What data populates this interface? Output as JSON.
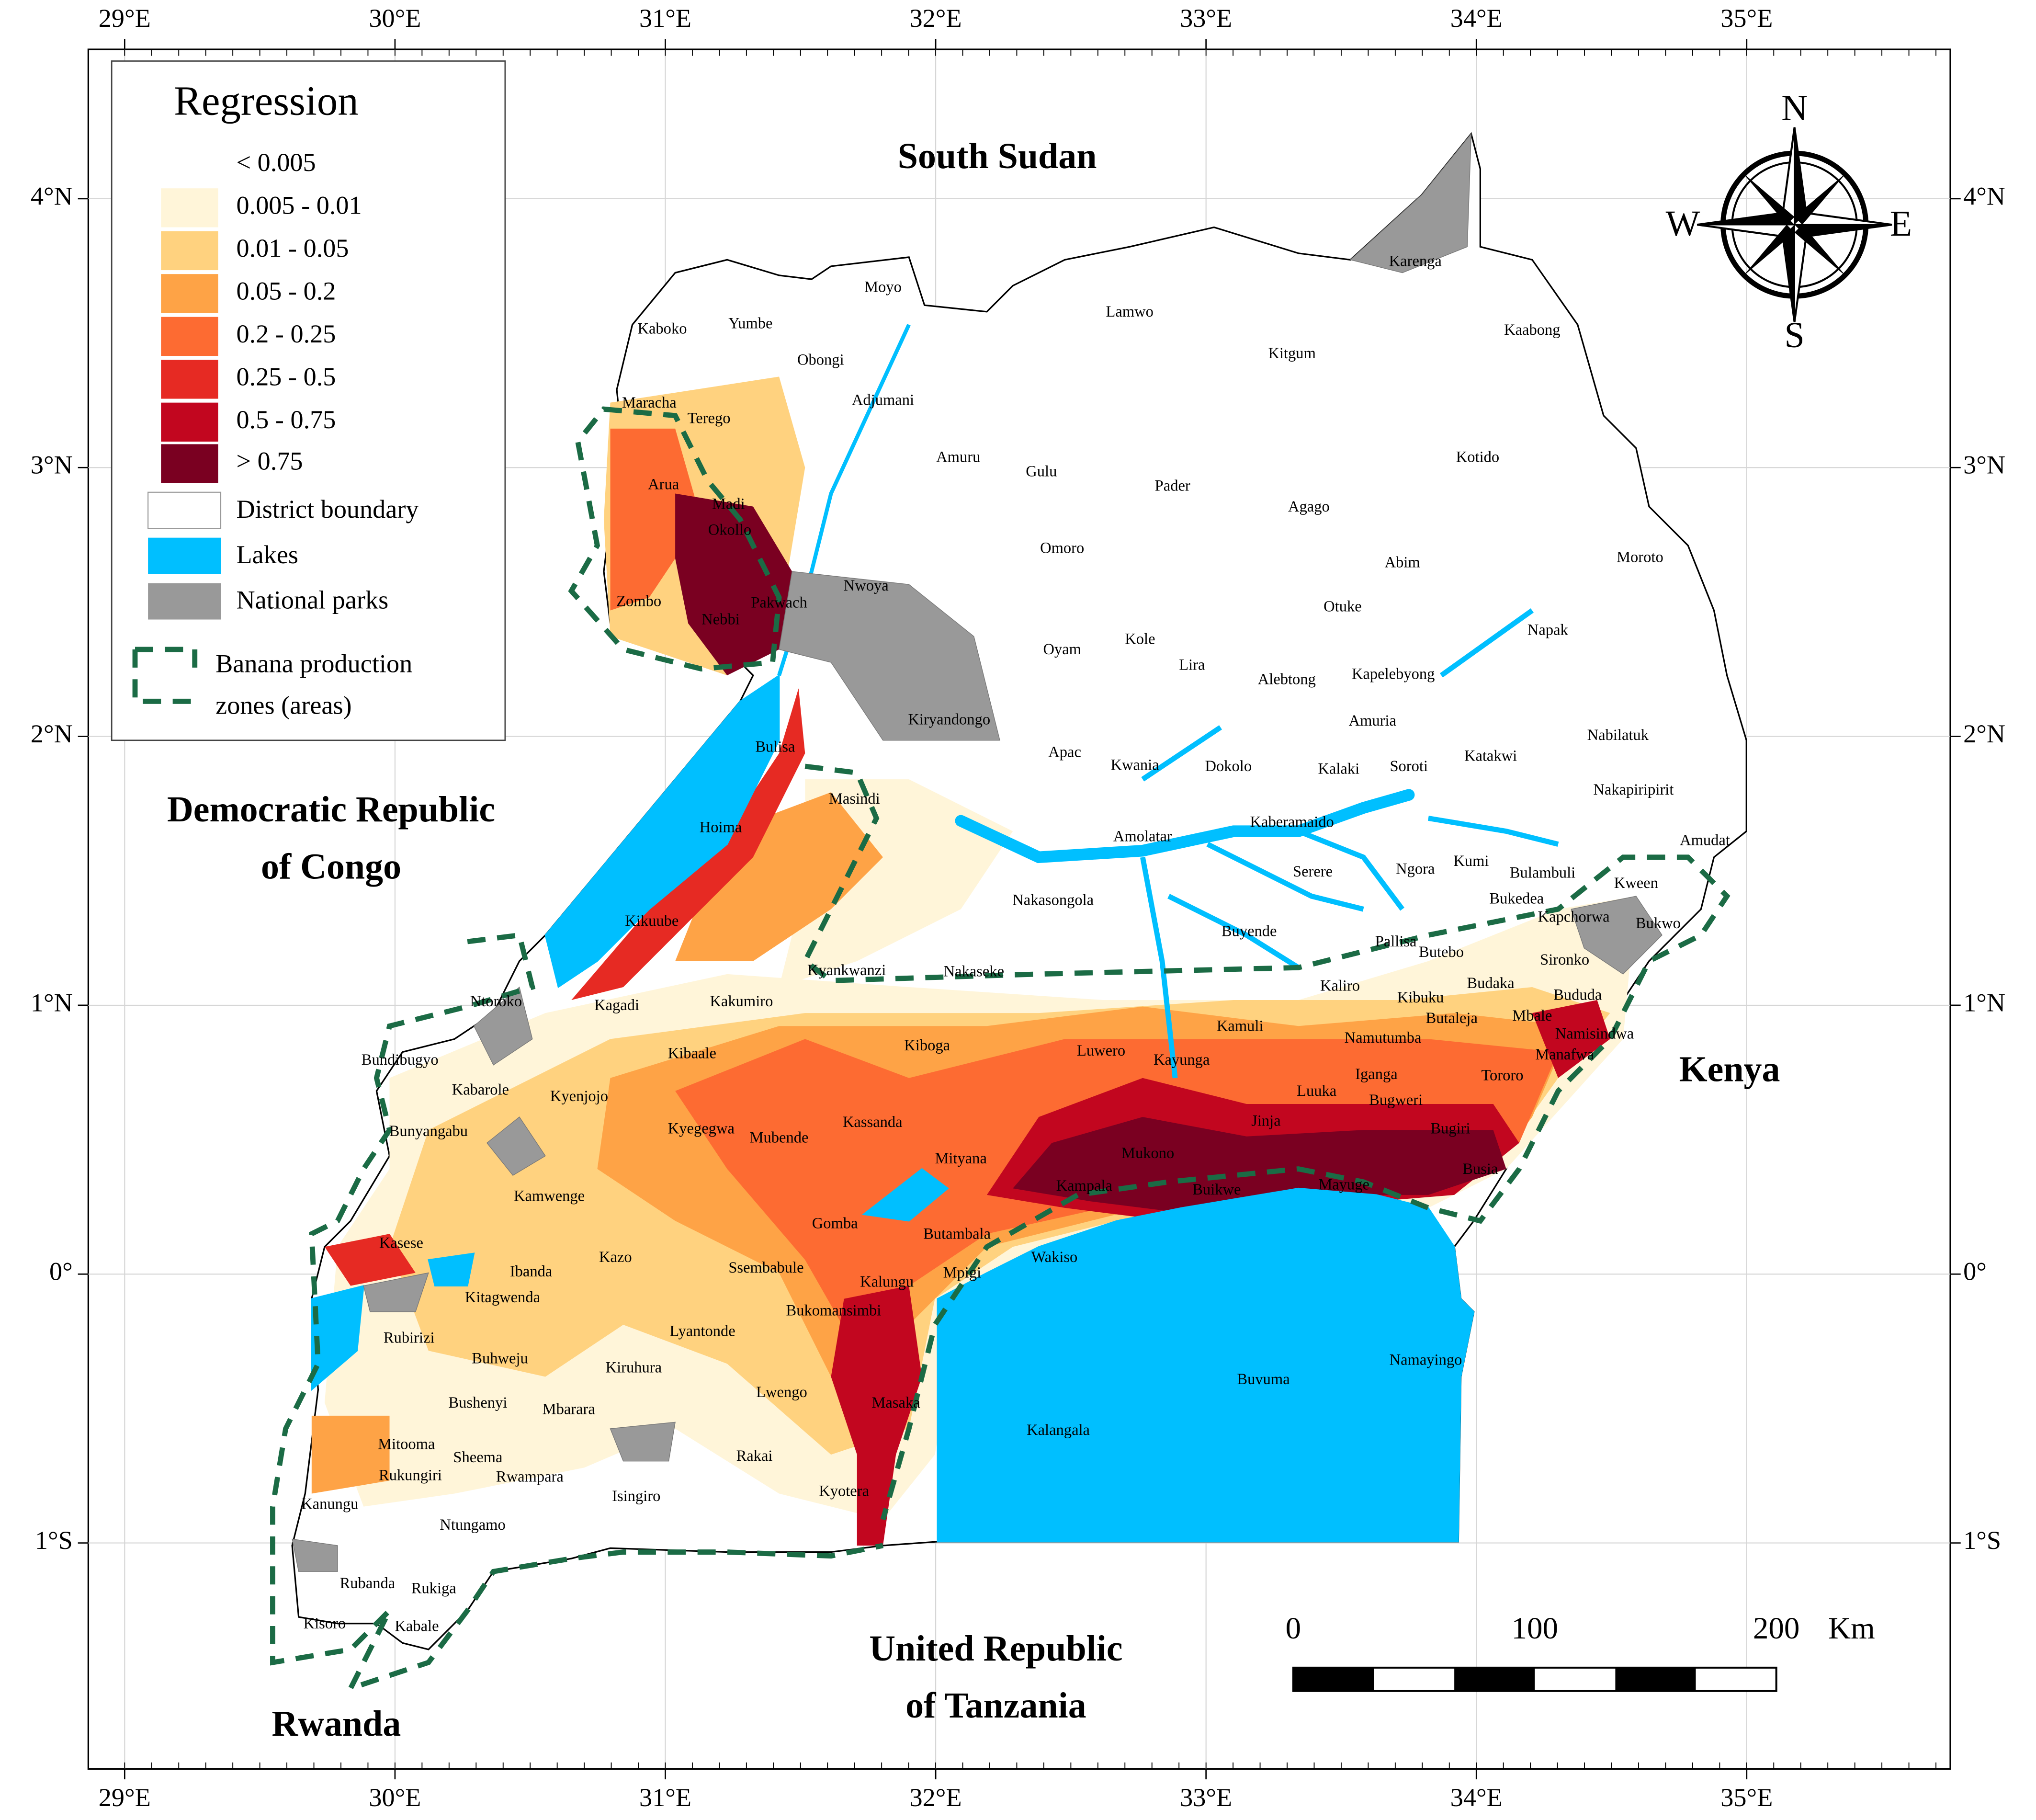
{
  "longitude_labels": [
    "29°E",
    "30°E",
    "31°E",
    "32°E",
    "33°E",
    "34°E",
    "35°E"
  ],
  "latitude_labels": [
    "4°N",
    "3°N",
    "2°N",
    "1°N",
    "0°",
    "1°S"
  ],
  "legend": {
    "title": "Regression",
    "classes": [
      {
        "label": "< 0.005",
        "color": "#ffffff"
      },
      {
        "label": "0.005 - 0.01",
        "color": "#fff5d9"
      },
      {
        "label": "0.01 - 0.05",
        "color": "#ffd27f"
      },
      {
        "label": "0.05 - 0.2",
        "color": "#fea346"
      },
      {
        "label": "0.2 - 0.25",
        "color": "#fd6b32"
      },
      {
        "label": "0.25 - 0.5",
        "color": "#e62a23"
      },
      {
        "label": "0.5 - 0.75",
        "color": "#c2061f"
      },
      {
        "label": "> 0.75",
        "color": "#7a0021"
      }
    ],
    "layers": [
      {
        "label": "District boundary",
        "color": "#ffffff"
      },
      {
        "label": "Lakes",
        "color": "#00bfff"
      },
      {
        "label": "National parks",
        "color": "#999999"
      }
    ],
    "zones": {
      "label_lines": [
        "Banana production",
        "zones (areas)"
      ],
      "color": "#1b6b45"
    }
  },
  "countries": [
    {
      "lines": [
        "South Sudan"
      ]
    },
    {
      "lines": [
        "Democratic Republic",
        "of Congo"
      ]
    },
    {
      "lines": [
        "Kenya"
      ]
    },
    {
      "lines": [
        "United Republic",
        "of Tanzania"
      ]
    },
    {
      "lines": [
        "Rwanda"
      ]
    }
  ],
  "districts": [
    "Karenga",
    "Moyo",
    "Kaboko",
    "Yumbe",
    "Lamwo",
    "Kaabong",
    "Obongi",
    "Kitgum",
    "Adjumani",
    "Maracha",
    "Terego",
    "Kotido",
    "Amuru",
    "Gulu",
    "Pader",
    "Arua",
    "Agago",
    "Madi",
    "Okollo",
    "Omoro",
    "Moroto",
    "Abim",
    "Nwoya",
    "Pakwach",
    "Zombo",
    "Otuke",
    "Nebbi",
    "Napak",
    "Kole",
    "Oyam",
    "Lira",
    "Alebtong",
    "Kapelebyong",
    "Kiryandongo",
    "Amuria",
    "Nabilatuk",
    "Apac",
    "Bulisa",
    "Katakwi",
    "Kwania",
    "Dokolo",
    "Kalaki",
    "Soroti",
    "Nakapiripirit",
    "Hoima",
    "Masindi",
    "Amolatar",
    "Kaberamaido",
    "Amudat",
    "Kumi",
    "Serere",
    "Ngora",
    "Bulambuli",
    "Kween",
    "Nakasongola",
    "Bukedea",
    "Kikuube",
    "Buyende",
    "Kapchorwa",
    "Pallisa",
    "Bukwo",
    "Butebo",
    "Kyankwanzi",
    "Nakaseke",
    "Sironko",
    "Budaka",
    "Kaliro",
    "Bududa",
    "Ntoroko",
    "Kagadi",
    "Kakumiro",
    "Kamuli",
    "Kibuku",
    "Mbale",
    "Butaleja",
    "Namisindwa",
    "Kiboga",
    "Luwero",
    "Namutumba",
    "Kibaale",
    "Kayunga",
    "Bundibugyo",
    "Manafwa",
    "Luuka",
    "Iganga",
    "Kabarole",
    "Kyenjojo",
    "Tororo",
    "Bugweri",
    "Jinja",
    "Kassanda",
    "Kyegegwa",
    "Bunyangabu",
    "Bugiri",
    "Mubende",
    "Mukono",
    "Mityana",
    "Busia",
    "Kampala",
    "Buikwe",
    "Mayuge",
    "Kamwenge",
    "Gomba",
    "Butambala",
    "Kasese",
    "Wakiso",
    "Ibanda",
    "Kazo",
    "Ssembabule",
    "Kitagwenda",
    "Mpigi",
    "Kalungu",
    "Bukomansimbi",
    "Rubirizi",
    "Lyantonde",
    "Buhweju",
    "Kiruhura",
    "Buvuma",
    "Namayingo",
    "Lwengo",
    "Bushenyi",
    "Mbarara",
    "Masaka",
    "Kalangala",
    "Mitooma",
    "Sheema",
    "Rwampara",
    "Rakai",
    "Rukungiri",
    "Isingiro",
    "Kyotera",
    "Kanungu",
    "Ntungamo",
    "Rubanda",
    "Rukiga",
    "Kisoro",
    "Kabale"
  ],
  "scale_bar": {
    "labels": [
      "0",
      "100",
      "200"
    ],
    "unit": "Km"
  },
  "compass": {
    "north": "N",
    "south": "S",
    "east": "E",
    "west": "W"
  }
}
